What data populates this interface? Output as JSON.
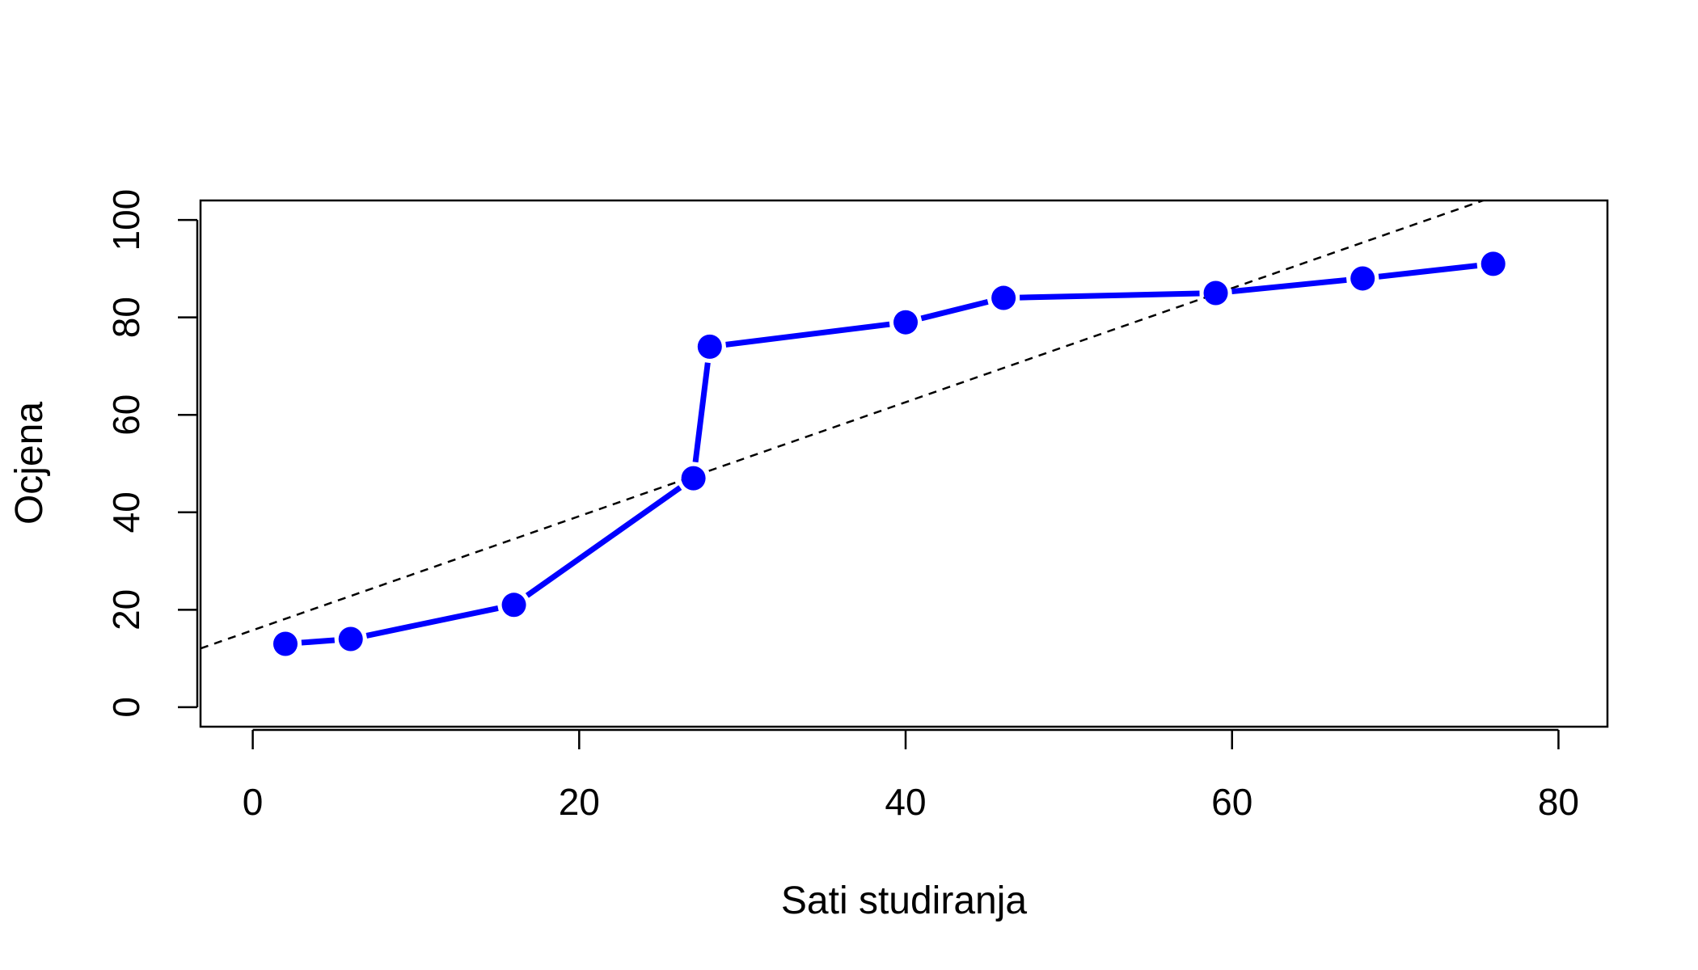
{
  "chart_data": {
    "type": "line",
    "title": "",
    "xlabel": "Sati studiranja",
    "ylabel": "Ocjena",
    "xlim": [
      -3.2,
      83
    ],
    "ylim": [
      -4,
      104
    ],
    "x_ticks": [
      0,
      20,
      40,
      60,
      80
    ],
    "y_ticks": [
      0,
      20,
      40,
      60,
      80,
      100
    ],
    "x_tick_labels": [
      "0",
      "20",
      "40",
      "60",
      "80"
    ],
    "y_tick_labels": [
      "0",
      "20",
      "40",
      "60",
      "80",
      "100"
    ],
    "grid": false,
    "legend": "none",
    "series": [
      {
        "x": [
          2,
          6,
          16,
          27,
          28,
          40,
          46,
          59,
          68,
          76
        ],
        "y": [
          13,
          14,
          21,
          47,
          74,
          79,
          84,
          85,
          88,
          91
        ],
        "color": "#0000ff",
        "style": "points-and-lines"
      }
    ],
    "trend_line": {
      "intercept": 15.8,
      "slope": 1.17,
      "color": "#000000",
      "dash": "dashed"
    }
  }
}
